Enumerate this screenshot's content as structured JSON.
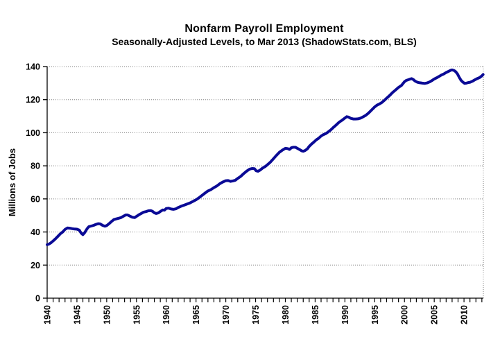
{
  "header": {
    "title": "Nonfarm Payroll Employment",
    "subtitle": "Seasonally-Adjusted Levels, to Mar 2013 (ShadowStats.com, BLS)"
  },
  "chart_data": {
    "type": "line",
    "title": "Nonfarm Payroll Employment",
    "subtitle": "Seasonally-Adjusted Levels, to Mar 2013 (ShadowStats.com, BLS)",
    "xlabel": "",
    "ylabel": "Millions of Jobs",
    "xlim": [
      1940,
      2013.25
    ],
    "ylim": [
      0,
      140
    ],
    "y_ticks": [
      0,
      20,
      40,
      60,
      80,
      100,
      120,
      140
    ],
    "x_ticks": [
      1940,
      1945,
      1950,
      1955,
      1960,
      1965,
      1970,
      1975,
      1980,
      1985,
      1990,
      1995,
      2000,
      2005,
      2010
    ],
    "x_minor_tick_step": 1,
    "grid": "horizontal-dotted",
    "legend": "none",
    "colors": {
      "line": "#0a0a96",
      "axis": "#000000",
      "gridline": "#808080",
      "text": "#000000",
      "background": "#ffffff"
    },
    "series": [
      {
        "name": "Nonfarm Payroll Employment (millions of jobs)",
        "color": "#0a0a96",
        "points": [
          [
            1940.0,
            32.3
          ],
          [
            1940.3,
            32.7
          ],
          [
            1940.6,
            33.4
          ],
          [
            1941.0,
            34.6
          ],
          [
            1941.4,
            35.9
          ],
          [
            1941.8,
            37.4
          ],
          [
            1942.2,
            38.9
          ],
          [
            1942.6,
            40.0
          ],
          [
            1943.0,
            41.6
          ],
          [
            1943.4,
            42.4
          ],
          [
            1943.8,
            42.3
          ],
          [
            1944.2,
            42.0
          ],
          [
            1944.6,
            41.8
          ],
          [
            1945.0,
            41.7
          ],
          [
            1945.4,
            41.1
          ],
          [
            1945.7,
            39.4
          ],
          [
            1946.0,
            38.4
          ],
          [
            1946.3,
            39.6
          ],
          [
            1946.7,
            41.9
          ],
          [
            1947.0,
            43.2
          ],
          [
            1947.4,
            43.6
          ],
          [
            1947.8,
            44.0
          ],
          [
            1948.2,
            44.6
          ],
          [
            1948.6,
            45.0
          ],
          [
            1948.9,
            44.9
          ],
          [
            1949.3,
            44.0
          ],
          [
            1949.7,
            43.5
          ],
          [
            1950.0,
            43.9
          ],
          [
            1950.4,
            45.0
          ],
          [
            1950.8,
            46.3
          ],
          [
            1951.2,
            47.5
          ],
          [
            1951.6,
            47.9
          ],
          [
            1952.0,
            48.3
          ],
          [
            1952.4,
            48.7
          ],
          [
            1952.8,
            49.5
          ],
          [
            1953.2,
            50.3
          ],
          [
            1953.5,
            50.3
          ],
          [
            1953.9,
            49.6
          ],
          [
            1954.3,
            48.9
          ],
          [
            1954.7,
            48.7
          ],
          [
            1955.0,
            49.4
          ],
          [
            1955.4,
            50.4
          ],
          [
            1955.8,
            51.2
          ],
          [
            1956.2,
            52.0
          ],
          [
            1956.6,
            52.3
          ],
          [
            1957.0,
            52.8
          ],
          [
            1957.4,
            52.9
          ],
          [
            1957.7,
            52.5
          ],
          [
            1958.0,
            51.6
          ],
          [
            1958.3,
            51.2
          ],
          [
            1958.7,
            51.6
          ],
          [
            1959.0,
            52.4
          ],
          [
            1959.4,
            53.3
          ],
          [
            1959.7,
            53.2
          ],
          [
            1960.0,
            54.2
          ],
          [
            1960.4,
            54.4
          ],
          [
            1960.8,
            53.9
          ],
          [
            1961.2,
            53.7
          ],
          [
            1961.6,
            54.0
          ],
          [
            1962.0,
            54.8
          ],
          [
            1962.5,
            55.6
          ],
          [
            1963.0,
            56.2
          ],
          [
            1963.5,
            56.9
          ],
          [
            1964.0,
            57.6
          ],
          [
            1964.5,
            58.5
          ],
          [
            1965.0,
            59.5
          ],
          [
            1965.5,
            60.7
          ],
          [
            1966.0,
            62.1
          ],
          [
            1966.5,
            63.5
          ],
          [
            1967.0,
            64.8
          ],
          [
            1967.5,
            65.6
          ],
          [
            1968.0,
            66.8
          ],
          [
            1968.5,
            67.8
          ],
          [
            1969.0,
            69.2
          ],
          [
            1969.5,
            70.2
          ],
          [
            1970.0,
            71.0
          ],
          [
            1970.4,
            71.1
          ],
          [
            1970.8,
            70.6
          ],
          [
            1971.2,
            70.9
          ],
          [
            1971.6,
            71.3
          ],
          [
            1972.0,
            72.4
          ],
          [
            1972.5,
            73.6
          ],
          [
            1973.0,
            75.3
          ],
          [
            1973.5,
            76.8
          ],
          [
            1974.0,
            78.0
          ],
          [
            1974.4,
            78.4
          ],
          [
            1974.8,
            78.3
          ],
          [
            1975.1,
            77.0
          ],
          [
            1975.4,
            76.7
          ],
          [
            1975.8,
            77.5
          ],
          [
            1976.2,
            78.7
          ],
          [
            1976.6,
            79.5
          ],
          [
            1977.0,
            80.7
          ],
          [
            1977.5,
            82.3
          ],
          [
            1978.0,
            84.3
          ],
          [
            1978.5,
            86.3
          ],
          [
            1979.0,
            88.2
          ],
          [
            1979.5,
            89.5
          ],
          [
            1980.0,
            90.6
          ],
          [
            1980.4,
            90.4
          ],
          [
            1980.7,
            89.9
          ],
          [
            1981.0,
            90.9
          ],
          [
            1981.3,
            91.2
          ],
          [
            1981.7,
            91.2
          ],
          [
            1982.0,
            90.6
          ],
          [
            1982.4,
            89.8
          ],
          [
            1982.8,
            89.0
          ],
          [
            1983.0,
            88.8
          ],
          [
            1983.3,
            89.2
          ],
          [
            1983.7,
            90.3
          ],
          [
            1984.0,
            91.7
          ],
          [
            1984.4,
            93.2
          ],
          [
            1984.8,
            94.4
          ],
          [
            1985.2,
            95.7
          ],
          [
            1985.6,
            96.7
          ],
          [
            1986.0,
            98.0
          ],
          [
            1986.4,
            98.9
          ],
          [
            1986.8,
            99.5
          ],
          [
            1987.2,
            100.5
          ],
          [
            1987.6,
            101.6
          ],
          [
            1988.0,
            103.0
          ],
          [
            1988.5,
            104.6
          ],
          [
            1989.0,
            106.3
          ],
          [
            1989.5,
            107.5
          ],
          [
            1990.0,
            108.9
          ],
          [
            1990.3,
            109.7
          ],
          [
            1990.6,
            109.5
          ],
          [
            1991.0,
            108.7
          ],
          [
            1991.4,
            108.3
          ],
          [
            1991.8,
            108.3
          ],
          [
            1992.2,
            108.4
          ],
          [
            1992.6,
            108.8
          ],
          [
            1993.0,
            109.5
          ],
          [
            1993.5,
            110.5
          ],
          [
            1994.0,
            112.0
          ],
          [
            1994.5,
            113.8
          ],
          [
            1995.0,
            115.6
          ],
          [
            1995.4,
            116.7
          ],
          [
            1995.8,
            117.4
          ],
          [
            1996.2,
            118.3
          ],
          [
            1996.6,
            119.5
          ],
          [
            1997.0,
            120.9
          ],
          [
            1997.5,
            122.5
          ],
          [
            1998.0,
            124.3
          ],
          [
            1998.5,
            125.8
          ],
          [
            1999.0,
            127.4
          ],
          [
            1999.5,
            128.6
          ],
          [
            2000.0,
            130.8
          ],
          [
            2000.3,
            131.6
          ],
          [
            2000.6,
            132.0
          ],
          [
            2001.0,
            132.5
          ],
          [
            2001.2,
            132.7
          ],
          [
            2001.5,
            132.1
          ],
          [
            2001.8,
            131.2
          ],
          [
            2002.2,
            130.5
          ],
          [
            2002.6,
            130.2
          ],
          [
            2003.0,
            130.0
          ],
          [
            2003.4,
            129.8
          ],
          [
            2003.8,
            130.1
          ],
          [
            2004.2,
            130.7
          ],
          [
            2004.6,
            131.5
          ],
          [
            2005.0,
            132.5
          ],
          [
            2005.4,
            133.2
          ],
          [
            2005.8,
            134.0
          ],
          [
            2006.2,
            134.9
          ],
          [
            2006.6,
            135.5
          ],
          [
            2007.0,
            136.4
          ],
          [
            2007.4,
            137.1
          ],
          [
            2007.8,
            137.8
          ],
          [
            2008.0,
            138.0
          ],
          [
            2008.3,
            137.7
          ],
          [
            2008.6,
            136.9
          ],
          [
            2008.9,
            135.6
          ],
          [
            2009.2,
            133.5
          ],
          [
            2009.5,
            131.7
          ],
          [
            2009.8,
            130.6
          ],
          [
            2010.1,
            129.8
          ],
          [
            2010.4,
            130.0
          ],
          [
            2010.7,
            130.3
          ],
          [
            2011.0,
            130.5
          ],
          [
            2011.4,
            131.1
          ],
          [
            2011.8,
            131.9
          ],
          [
            2012.2,
            132.7
          ],
          [
            2012.6,
            133.3
          ],
          [
            2013.0,
            134.4
          ],
          [
            2013.2,
            135.2
          ]
        ]
      }
    ]
  }
}
